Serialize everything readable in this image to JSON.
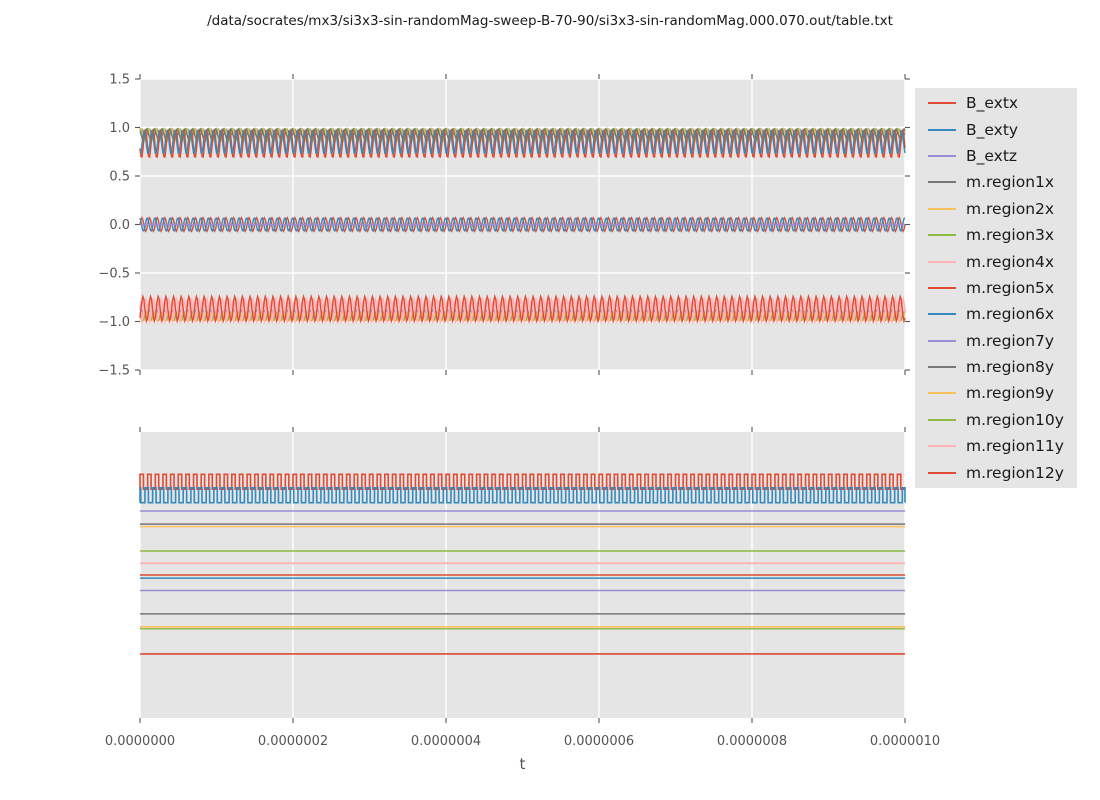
{
  "title": "/data/socrates/mx3/si3x3-sin-randomMag-sweep-B-70-90/si3x3-sin-randomMag.000.070.out/table.txt",
  "colors": {
    "figure_bg": "#ffffff",
    "axes_bg": "#e5e5e5",
    "grid": "#ffffff",
    "tick": "#555555",
    "tick_label": "#555555",
    "title_text": "#1a1a1a",
    "legend_bg": "#e5e5e5",
    "legend_text": "#1a1a1a",
    "red": "#E24A33",
    "blue": "#348ABD",
    "purple": "#988ED5",
    "gray": "#777777",
    "orange": "#FBC15E",
    "green": "#8EBA42",
    "pink": "#FFB5B8"
  },
  "xaxis": {
    "label": "t",
    "tick_labels": [
      "0.0000000",
      "0.0000002",
      "0.0000004",
      "0.0000006",
      "0.0000008",
      "0.0000010"
    ],
    "range": [
      0,
      1e-06
    ]
  },
  "legend": {
    "entries": [
      {
        "label": "B_extx",
        "color": "#E24A33"
      },
      {
        "label": "B_exty",
        "color": "#348ABD"
      },
      {
        "label": "B_extz",
        "color": "#988ED5"
      },
      {
        "label": "m.region1x",
        "color": "#777777"
      },
      {
        "label": "m.region2x",
        "color": "#FBC15E"
      },
      {
        "label": "m.region3x",
        "color": "#8EBA42"
      },
      {
        "label": "m.region4x",
        "color": "#FFB5B8"
      },
      {
        "label": "m.region5x",
        "color": "#E24A33"
      },
      {
        "label": "m.region6x",
        "color": "#348ABD"
      },
      {
        "label": "m.region7y",
        "color": "#988ED5"
      },
      {
        "label": "m.region8y",
        "color": "#777777"
      },
      {
        "label": "m.region9y",
        "color": "#FBC15E"
      },
      {
        "label": "m.region10y",
        "color": "#8EBA42"
      },
      {
        "label": "m.region11y",
        "color": "#FFB5B8"
      },
      {
        "label": "m.region12y",
        "color": "#E24A33"
      }
    ]
  },
  "chart_data": [
    {
      "type": "line",
      "subplot": "top",
      "title": "",
      "xlabel": "t",
      "ylabel": "",
      "xlim": [
        0,
        1e-06
      ],
      "ylim": [
        -1.5,
        1.5
      ],
      "ytick_labels": [
        "1.5",
        "1.0",
        "0.5",
        "0.0",
        "−0.5",
        "−1.0",
        "−1.5"
      ],
      "ytick_values": [
        1.5,
        1.0,
        0.5,
        0.0,
        -0.5,
        -1.0,
        -1.5
      ],
      "grid": "both",
      "oscillation_cycles_in_window": 100,
      "frequency_hz_estimate": 100000000,
      "series": [
        {
          "name": "B_extx",
          "color": "#E24A33",
          "waveform": "sine",
          "mean": 0.0,
          "amplitude": 0.07,
          "phase_deg": 0,
          "lw": 1.4
        },
        {
          "name": "B_exty",
          "color": "#348ABD",
          "waveform": "sine",
          "mean": 0.0,
          "amplitude": 0.07,
          "phase_deg": 108,
          "lw": 1.4
        },
        {
          "name": "B_extz",
          "color": "#988ED5",
          "waveform": "flat",
          "mean": 0.0,
          "amplitude": 0,
          "phase_deg": 0,
          "lw": 1.4
        },
        {
          "name": "m.region1x",
          "color": "#777777",
          "waveform": "sine",
          "mean": 0.935,
          "amplitude": 0.05,
          "phase_deg": 20,
          "lw": 1.3
        },
        {
          "name": "m.region2x",
          "color": "#FBC15E",
          "waveform": "sine",
          "mean": 0.93,
          "amplitude": 0.062,
          "phase_deg": 60,
          "lw": 1.3
        },
        {
          "name": "m.region3x",
          "color": "#8EBA42",
          "waveform": "sine",
          "mean": 0.92,
          "amplitude": 0.075,
          "phase_deg": 110,
          "lw": 1.3
        },
        {
          "name": "m.region4x",
          "color": "#FFB5B8",
          "waveform": "sine",
          "mean": -0.89,
          "amplitude": 0.105,
          "phase_deg": 10,
          "lw": 1.8
        },
        {
          "name": "m.region5x",
          "color": "#E24A33",
          "waveform": "sine",
          "mean": 0.835,
          "amplitude": 0.148,
          "phase_deg": 200,
          "lw": 1.5
        },
        {
          "name": "m.region6x",
          "color": "#348ABD",
          "waveform": "sine",
          "mean": 0.85,
          "amplitude": 0.12,
          "phase_deg": 250,
          "lw": 1.4
        },
        {
          "name": "m.region7y",
          "color": "#988ED5",
          "waveform": "sine",
          "mean": -0.925,
          "amplitude": 0.055,
          "phase_deg": 40,
          "lw": 1.3
        },
        {
          "name": "m.region8y",
          "color": "#777777",
          "waveform": "sine",
          "mean": 0.94,
          "amplitude": 0.045,
          "phase_deg": 150,
          "lw": 1.3
        },
        {
          "name": "m.region9y",
          "color": "#FBC15E",
          "waveform": "sine",
          "mean": -0.95,
          "amplitude": 0.042,
          "phase_deg": 80,
          "lw": 1.3
        },
        {
          "name": "m.region10y",
          "color": "#8EBA42",
          "waveform": "sine",
          "mean": -0.945,
          "amplitude": 0.048,
          "phase_deg": 130,
          "lw": 1.3
        },
        {
          "name": "m.region11y",
          "color": "#FFB5B8",
          "waveform": "sine",
          "mean": -0.885,
          "amplitude": 0.115,
          "phase_deg": 190,
          "lw": 1.9
        },
        {
          "name": "m.region12y",
          "color": "#E24A33",
          "waveform": "sine",
          "mean": -0.868,
          "amplitude": 0.126,
          "phase_deg": 310,
          "lw": 1.4
        }
      ]
    },
    {
      "type": "line",
      "subplot": "bottom",
      "title": "",
      "xlabel": "t",
      "ylabel": "",
      "xlim": [
        0,
        1e-06
      ],
      "yaxis_note": "no y tick labels visible; levels given as fraction of axes height from bottom",
      "grid": "x-only",
      "oscillation_cycles_in_window": 100,
      "series": [
        {
          "name": "B_extx",
          "color": "#E24A33",
          "waveform": "square",
          "base_frac": 0.8,
          "high_frac": 0.852,
          "duty": 0.45,
          "phase_frac": 0.0,
          "lw": 1.6
        },
        {
          "name": "B_exty",
          "color": "#348ABD",
          "waveform": "square",
          "base_frac": 0.753,
          "high_frac": 0.805,
          "duty": 0.45,
          "phase_frac": 0.35,
          "lw": 1.6
        },
        {
          "name": "B_extz",
          "color": "#988ED5",
          "waveform": "flat",
          "level_frac": 0.724,
          "lw": 1.5
        },
        {
          "name": "m.region1x",
          "color": "#777777",
          "waveform": "flat",
          "level_frac": 0.678,
          "lw": 1.5
        },
        {
          "name": "m.region2x",
          "color": "#FBC15E",
          "waveform": "flat",
          "level_frac": 0.669,
          "lw": 1.5
        },
        {
          "name": "m.region3x",
          "color": "#8EBA42",
          "waveform": "flat",
          "level_frac": 0.584,
          "lw": 1.5
        },
        {
          "name": "m.region4x",
          "color": "#FFB5B8",
          "waveform": "flat",
          "level_frac": 0.541,
          "lw": 1.8
        },
        {
          "name": "m.region5x",
          "color": "#E24A33",
          "waveform": "flat",
          "level_frac": 0.5,
          "lw": 1.5
        },
        {
          "name": "m.region6x",
          "color": "#348ABD",
          "waveform": "flat",
          "level_frac": 0.489,
          "lw": 1.5
        },
        {
          "name": "m.region7y",
          "color": "#988ED5",
          "waveform": "flat",
          "level_frac": 0.446,
          "lw": 1.5
        },
        {
          "name": "m.region8y",
          "color": "#777777",
          "waveform": "flat",
          "level_frac": 0.364,
          "lw": 1.5
        },
        {
          "name": "m.region9y",
          "color": "#FBC15E",
          "waveform": "flat",
          "level_frac": 0.319,
          "lw": 1.6
        },
        {
          "name": "m.region10y",
          "color": "#8EBA42",
          "waveform": "flat",
          "level_frac": 0.312,
          "lw": 1.4
        },
        {
          "name": "m.region11y",
          "color": "#FFB5B8",
          "waveform": "flat",
          "level_frac": 0.541,
          "lw": 1.8
        },
        {
          "name": "m.region12y",
          "color": "#E24A33",
          "waveform": "flat",
          "level_frac": 0.224,
          "lw": 1.6
        }
      ]
    }
  ]
}
